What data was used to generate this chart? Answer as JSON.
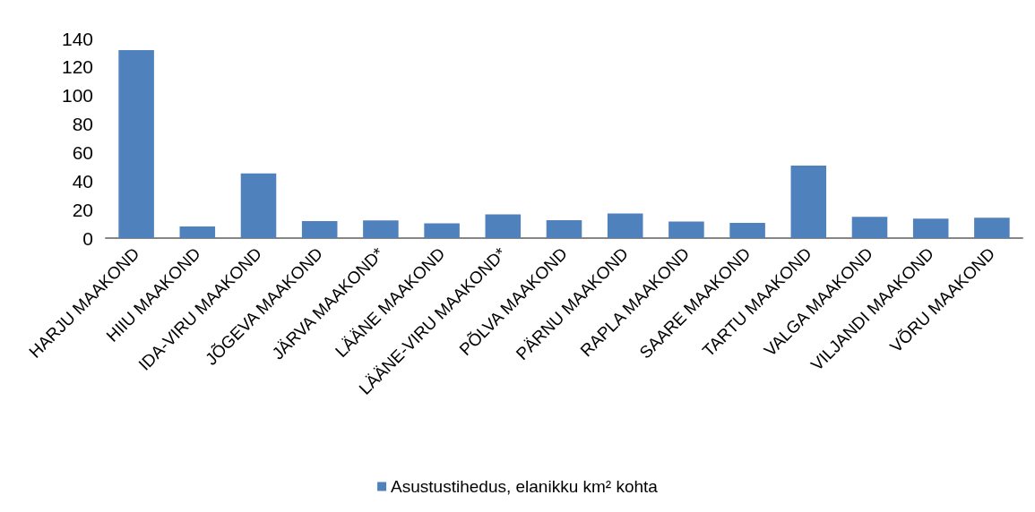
{
  "chart_data": {
    "type": "bar",
    "categories": [
      "HARJU MAAKOND",
      "HIIU MAAKOND",
      "IDA-VIRU MAAKOND",
      "JÕGEVA MAAKOND",
      "JÄRVA MAAKOND*",
      "LÄÄNE MAAKOND",
      "LÄÄNE-VIRU MAAKOND*",
      "PÕLVA MAAKOND",
      "PÄRNU MAAKOND",
      "RAPLA MAAKOND",
      "SAARE MAAKOND",
      "TARTU MAAKOND",
      "VALGA MAAKOND",
      "VILJANDI MAAKOND",
      "VÕRU MAAKOND"
    ],
    "series": [
      {
        "name": "Asustustihedus, elanikku km² kohta",
        "color": "#4f81bd",
        "values": [
          131.8,
          8.2,
          45.3,
          12,
          12.4,
          10.3,
          16.6,
          12.6,
          17.3,
          11.6,
          10.7,
          50.9,
          14.9,
          13.7,
          14.3
        ]
      }
    ],
    "ylim": [
      0,
      140
    ],
    "yticks": [
      0,
      20,
      40,
      60,
      80,
      100,
      120,
      140
    ],
    "grid": false,
    "legend": "bottom"
  }
}
